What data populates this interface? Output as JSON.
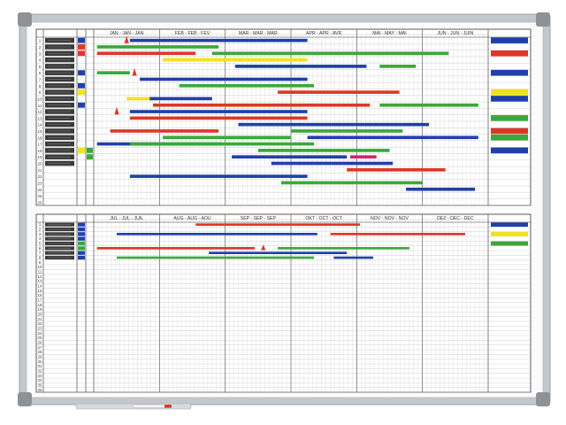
{
  "colors": {
    "frame": "#c4c7cb",
    "frame_edge": "#9ea2a7",
    "corner": "#8e9297",
    "board": "#fbfbfb",
    "grid_light": "#d6d6d6",
    "grid_month": "#4a4a4a",
    "label_chip": "#3a3a3a",
    "blue": "#2040a8",
    "red": "#e03628",
    "green": "#3aa83a",
    "yellow": "#f2e21a",
    "magenta": "#d4246e"
  },
  "panels": [
    {
      "id": "top",
      "months": [
        "JAN - JAN - JAN",
        "FEB - FEB - FEV",
        "MAR - MAR - MAR",
        "APR - APR - AVR",
        "MAI - MAY - MAI",
        "JUN - JUN - JUIN"
      ],
      "row_numbers": [
        "1",
        "2",
        "3",
        "4",
        "5",
        "6",
        "7",
        "8",
        "9",
        "10",
        "11",
        "12",
        "13",
        "14",
        "15",
        "16",
        "17",
        "18",
        "19",
        "20",
        "21",
        "22",
        "23",
        "24",
        "25",
        "26"
      ],
      "labeled_rows": 20,
      "row_markers": [
        {
          "row": 1,
          "color": "blue"
        },
        {
          "row": 2,
          "color": "red"
        },
        {
          "row": 3,
          "color": "red"
        },
        {
          "row": 6,
          "color": "blue"
        },
        {
          "row": 8,
          "color": "blue"
        },
        {
          "row": 9,
          "color": "yellow"
        },
        {
          "row": 11,
          "color": "blue"
        },
        {
          "row": 18,
          "color": "yellow"
        },
        {
          "row": 18,
          "color": "green",
          "col": 2
        },
        {
          "row": 19,
          "color": "green",
          "col": 2
        }
      ],
      "bars": [
        {
          "row": 1,
          "start": 0.55,
          "end": 3.25,
          "color": "blue"
        },
        {
          "row": 2,
          "start": 0.05,
          "end": 1.9,
          "color": "green"
        },
        {
          "row": 3,
          "start": 0.05,
          "end": 1.55,
          "color": "red"
        },
        {
          "row": 3,
          "start": 1.8,
          "end": 5.4,
          "color": "green"
        },
        {
          "row": 4,
          "start": 1.05,
          "end": 3.25,
          "color": "yellow"
        },
        {
          "row": 5,
          "start": 2.15,
          "end": 4.15,
          "color": "blue"
        },
        {
          "row": 5,
          "start": 4.35,
          "end": 4.9,
          "color": "green"
        },
        {
          "row": 6,
          "start": 0.05,
          "end": 0.55,
          "color": "green"
        },
        {
          "row": 7,
          "start": 0.7,
          "end": 3.25,
          "color": "blue"
        },
        {
          "row": 8,
          "start": 1.3,
          "end": 3.35,
          "color": "green"
        },
        {
          "row": 9,
          "start": 2.8,
          "end": 4.65,
          "color": "red"
        },
        {
          "row": 10,
          "start": 0.5,
          "end": 1.0,
          "color": "yellow"
        },
        {
          "row": 10,
          "start": 0.85,
          "end": 1.8,
          "color": "blue"
        },
        {
          "row": 11,
          "start": 0.9,
          "end": 4.2,
          "color": "red"
        },
        {
          "row": 11,
          "start": 4.35,
          "end": 5.85,
          "color": "green"
        },
        {
          "row": 12,
          "start": 0.55,
          "end": 3.25,
          "color": "blue"
        },
        {
          "row": 13,
          "start": 0.55,
          "end": 3.25,
          "color": "yellow"
        },
        {
          "row": 13,
          "start": 0.55,
          "end": 3.25,
          "color": "red"
        },
        {
          "row": 14,
          "start": 2.2,
          "end": 5.1,
          "color": "blue"
        },
        {
          "row": 15,
          "start": 0.25,
          "end": 1.9,
          "color": "red"
        },
        {
          "row": 15,
          "start": 3.0,
          "end": 4.7,
          "color": "green"
        },
        {
          "row": 16,
          "start": 1.05,
          "end": 3.0,
          "color": "green"
        },
        {
          "row": 16,
          "start": 3.25,
          "end": 5.85,
          "color": "blue"
        },
        {
          "row": 17,
          "start": 0.05,
          "end": 1.95,
          "color": "blue"
        },
        {
          "row": 17,
          "start": 0.55,
          "end": 3.35,
          "color": "green"
        },
        {
          "row": 18,
          "start": 2.5,
          "end": 4.5,
          "color": "green"
        },
        {
          "row": 19,
          "start": 3.9,
          "end": 4.3,
          "color": "magenta"
        },
        {
          "row": 19,
          "start": 2.1,
          "end": 3.85,
          "color": "blue"
        },
        {
          "row": 20,
          "start": 2.7,
          "end": 4.55,
          "color": "blue"
        },
        {
          "row": 21,
          "start": 3.85,
          "end": 5.35,
          "color": "red"
        },
        {
          "row": 22,
          "start": 0.55,
          "end": 3.25,
          "color": "blue"
        },
        {
          "row": 23,
          "start": 2.85,
          "end": 5.0,
          "color": "green"
        },
        {
          "row": 24,
          "start": 4.75,
          "end": 5.8,
          "color": "blue"
        }
      ],
      "triangles": [
        {
          "row": 1,
          "pos": 0.5
        },
        {
          "row": 6,
          "pos": 0.62
        },
        {
          "row": 12,
          "pos": 0.35
        }
      ],
      "side_tabs": [
        {
          "row": 1,
          "color": "blue"
        },
        {
          "row": 3,
          "color": "red"
        },
        {
          "row": 6,
          "color": "blue"
        },
        {
          "row": 9,
          "color": "yellow"
        },
        {
          "row": 10,
          "color": "blue"
        },
        {
          "row": 13,
          "color": "green"
        },
        {
          "row": 15,
          "color": "red"
        },
        {
          "row": 16,
          "color": "green"
        },
        {
          "row": 18,
          "color": "blue"
        }
      ]
    },
    {
      "id": "bottom",
      "months": [
        "JUL - JUL - JUIL",
        "AUG - AUG - AOU",
        "SEP - SEP - SEP",
        "OKT - OCT - OCT",
        "NOV - NOV - NOV",
        "DEZ - DEC - DEC"
      ],
      "row_numbers": [
        "1",
        "2",
        "3",
        "4",
        "5",
        "6",
        "7",
        "8",
        "9",
        "10",
        "11",
        "12",
        "13",
        "14",
        "15",
        "16",
        "17",
        "18",
        "19",
        "20",
        "21",
        "22",
        "23",
        "24",
        "25",
        "26",
        "27",
        "28",
        "29",
        "30",
        "31",
        "32",
        "33",
        "34",
        "35",
        "36"
      ],
      "labeled_rows": 8,
      "row_markers": [
        {
          "row": 1,
          "color": "blue"
        },
        {
          "row": 2,
          "color": "blue"
        },
        {
          "row": 3,
          "color": "blue"
        },
        {
          "row": 4,
          "color": "blue"
        },
        {
          "row": 5,
          "color": "green"
        },
        {
          "row": 6,
          "color": "green"
        },
        {
          "row": 7,
          "color": "blue"
        },
        {
          "row": 8,
          "color": "blue"
        }
      ],
      "bars": [
        {
          "row": 1,
          "start": 1.55,
          "end": 4.05,
          "color": "red"
        },
        {
          "row": 3,
          "start": 0.35,
          "end": 3.4,
          "color": "blue"
        },
        {
          "row": 3,
          "start": 3.6,
          "end": 5.65,
          "color": "red"
        },
        {
          "row": 6,
          "start": 0.05,
          "end": 2.45,
          "color": "red"
        },
        {
          "row": 6,
          "start": 2.8,
          "end": 4.8,
          "color": "green"
        },
        {
          "row": 7,
          "start": 1.75,
          "end": 3.85,
          "color": "blue"
        },
        {
          "row": 8,
          "start": 0.35,
          "end": 3.35,
          "color": "green"
        },
        {
          "row": 8,
          "start": 3.65,
          "end": 4.25,
          "color": "blue"
        }
      ],
      "triangles": [
        {
          "row": 6,
          "pos": 2.58
        }
      ],
      "side_tabs": [
        {
          "row": 1,
          "color": "blue"
        },
        {
          "row": 3,
          "color": "yellow"
        },
        {
          "row": 5,
          "color": "green"
        }
      ]
    }
  ]
}
